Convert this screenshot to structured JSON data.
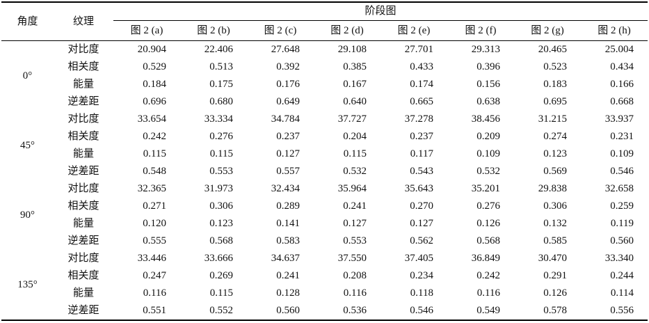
{
  "table": {
    "headers": {
      "angle": "角度",
      "texture": "纹理",
      "group": "阶段图",
      "images": [
        "图 2 (a)",
        "图 2 (b)",
        "图 2 (c)",
        "图 2 (d)",
        "图 2 (e)",
        "图 2 (f)",
        "图 2 (g)",
        "图 2 (h)"
      ]
    },
    "metrics": [
      "对比度",
      "相关度",
      "能量",
      "逆差距"
    ],
    "groups": [
      {
        "angle": "0°",
        "rows": [
          [
            "20.904",
            "22.406",
            "27.648",
            "29.108",
            "27.701",
            "29.313",
            "20.465",
            "25.004"
          ],
          [
            "0.529",
            "0.513",
            "0.392",
            "0.385",
            "0.433",
            "0.396",
            "0.523",
            "0.434"
          ],
          [
            "0.184",
            "0.175",
            "0.176",
            "0.167",
            "0.174",
            "0.156",
            "0.183",
            "0.166"
          ],
          [
            "0.696",
            "0.680",
            "0.649",
            "0.640",
            "0.665",
            "0.638",
            "0.695",
            "0.668"
          ]
        ]
      },
      {
        "angle": "45°",
        "rows": [
          [
            "33.654",
            "33.334",
            "34.784",
            "37.727",
            "37.278",
            "38.456",
            "31.215",
            "33.937"
          ],
          [
            "0.242",
            "0.276",
            "0.237",
            "0.204",
            "0.237",
            "0.209",
            "0.274",
            "0.231"
          ],
          [
            "0.115",
            "0.115",
            "0.127",
            "0.115",
            "0.117",
            "0.109",
            "0.123",
            "0.109"
          ],
          [
            "0.548",
            "0.553",
            "0.557",
            "0.532",
            "0.543",
            "0.532",
            "0.569",
            "0.546"
          ]
        ]
      },
      {
        "angle": "90°",
        "rows": [
          [
            "32.365",
            "31.973",
            "32.434",
            "35.964",
            "35.643",
            "35.201",
            "29.838",
            "32.658"
          ],
          [
            "0.271",
            "0.306",
            "0.289",
            "0.241",
            "0.270",
            "0.276",
            "0.306",
            "0.259"
          ],
          [
            "0.120",
            "0.123",
            "0.141",
            "0.127",
            "0.127",
            "0.126",
            "0.132",
            "0.119"
          ],
          [
            "0.555",
            "0.568",
            "0.583",
            "0.553",
            "0.562",
            "0.568",
            "0.585",
            "0.560"
          ]
        ]
      },
      {
        "angle": "135°",
        "rows": [
          [
            "33.446",
            "33.666",
            "34.637",
            "37.550",
            "37.405",
            "36.849",
            "30.470",
            "33.340"
          ],
          [
            "0.247",
            "0.269",
            "0.241",
            "0.208",
            "0.234",
            "0.242",
            "0.291",
            "0.244"
          ],
          [
            "0.116",
            "0.115",
            "0.128",
            "0.116",
            "0.118",
            "0.116",
            "0.126",
            "0.114"
          ],
          [
            "0.551",
            "0.552",
            "0.560",
            "0.536",
            "0.546",
            "0.549",
            "0.578",
            "0.556"
          ]
        ]
      }
    ]
  }
}
